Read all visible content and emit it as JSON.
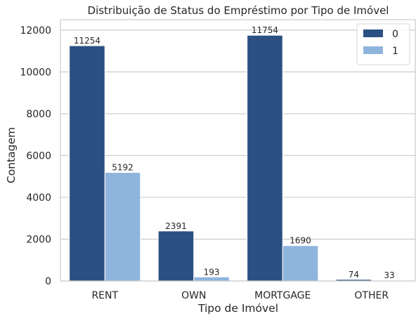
{
  "chart_data": {
    "type": "bar",
    "title": "Distribuição de Status do Empréstimo por Tipo de Imóvel",
    "xlabel": "Tipo de Imóvel",
    "ylabel": "Contagem",
    "categories": [
      "RENT",
      "OWN",
      "MORTGAGE",
      "OTHER"
    ],
    "series": [
      {
        "name": "0",
        "color": "#2b5082",
        "values": [
          11254,
          2391,
          11754,
          74
        ]
      },
      {
        "name": "1",
        "color": "#8fb5dd",
        "values": [
          5192,
          193,
          1690,
          33
        ]
      }
    ],
    "ylim": [
      0,
      12500
    ],
    "yticks": [
      0,
      2000,
      4000,
      6000,
      8000,
      10000,
      12000
    ],
    "grid": "y",
    "legend_position": "top-right",
    "data_labels": true
  }
}
